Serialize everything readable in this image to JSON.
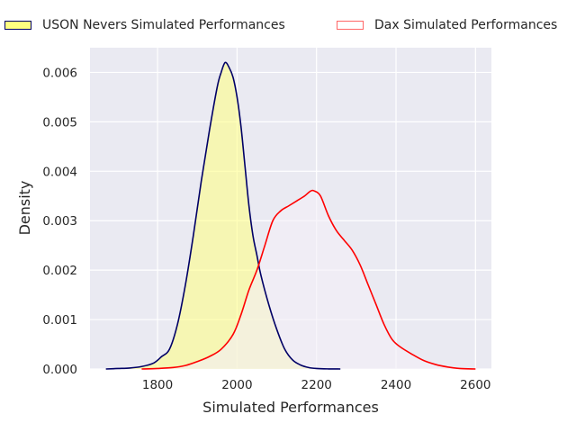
{
  "chart_data": {
    "type": "area",
    "title": "",
    "xlabel": "Simulated Performances",
    "ylabel": "Density",
    "xlim": [
      1630,
      2640
    ],
    "ylim": [
      0,
      0.0065
    ],
    "xticks": [
      1800,
      2000,
      2200,
      2400,
      2600
    ],
    "yticks": [
      0,
      0.001,
      0.002,
      0.003,
      0.004,
      0.005,
      0.006
    ],
    "xtick_labels": [
      "1800",
      "2000",
      "2200",
      "2400",
      "2600"
    ],
    "ytick_labels": [
      "0.000",
      "0.001",
      "0.002",
      "0.003",
      "0.004",
      "0.005",
      "0.006"
    ],
    "grid": true,
    "legend_position": "top",
    "series": [
      {
        "name": "USON Nevers Simulated Performances",
        "line_color": "#000066",
        "fill_color": "#ffff80",
        "x": [
          1670,
          1700,
          1730,
          1760,
          1790,
          1810,
          1830,
          1850,
          1870,
          1890,
          1910,
          1930,
          1950,
          1960,
          1970,
          1980,
          1990,
          2000,
          2010,
          2020,
          2030,
          2040,
          2050,
          2060,
          2080,
          2100,
          2120,
          2140,
          2160,
          2180,
          2200,
          2230,
          2260
        ],
        "y": [
          0,
          1e-05,
          2e-05,
          5e-05,
          0.00012,
          0.00025,
          0.0004,
          0.0009,
          0.0017,
          0.0027,
          0.0038,
          0.0048,
          0.0057,
          0.006,
          0.0062,
          0.0061,
          0.0059,
          0.0055,
          0.0049,
          0.0041,
          0.0033,
          0.0027,
          0.0023,
          0.0019,
          0.0013,
          0.0008,
          0.0004,
          0.00018,
          8e-05,
          3e-05,
          1e-05,
          2e-06,
          0
        ]
      },
      {
        "name": "Dax Simulated Performances",
        "line_color": "#ff0000",
        "fill_color": "#f3eef6",
        "x": [
          1760,
          1800,
          1840,
          1870,
          1900,
          1930,
          1960,
          1990,
          2010,
          2030,
          2050,
          2070,
          2090,
          2110,
          2130,
          2150,
          2170,
          2185,
          2195,
          2210,
          2230,
          2250,
          2270,
          2290,
          2310,
          2330,
          2350,
          2370,
          2390,
          2410,
          2440,
          2470,
          2500,
          2530,
          2560,
          2600
        ],
        "y": [
          0,
          1e-05,
          3e-05,
          7e-05,
          0.00015,
          0.00025,
          0.0004,
          0.0007,
          0.0011,
          0.0016,
          0.002,
          0.0025,
          0.003,
          0.0032,
          0.0033,
          0.0034,
          0.0035,
          0.0036,
          0.0036,
          0.0035,
          0.0031,
          0.0028,
          0.0026,
          0.0024,
          0.0021,
          0.0017,
          0.0013,
          0.0009,
          0.0006,
          0.00045,
          0.0003,
          0.00017,
          9e-05,
          4e-05,
          1e-05,
          0
        ]
      }
    ]
  }
}
